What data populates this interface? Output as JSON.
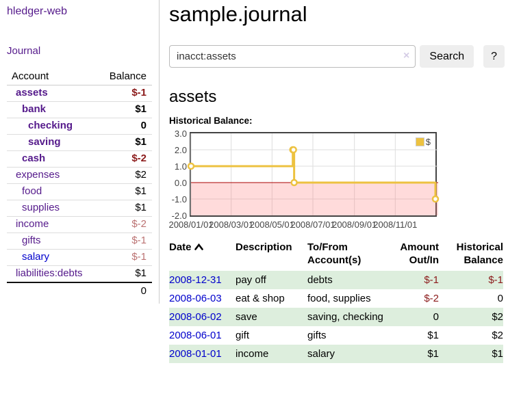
{
  "brand": "hledger-web",
  "sidebar": {
    "journal_link": "Journal",
    "accounts_table": {
      "headers": [
        "Account",
        "Balance"
      ],
      "rows": [
        {
          "name": "assets",
          "depth": 1,
          "bold": true,
          "balance": "$-1",
          "negative": true
        },
        {
          "name": "bank",
          "depth": 2,
          "bold": true,
          "balance": "$1",
          "negative": false
        },
        {
          "name": "checking",
          "depth": 3,
          "bold": true,
          "balance": "0",
          "negative": false
        },
        {
          "name": "saving",
          "depth": 3,
          "bold": true,
          "balance": "$1",
          "negative": false
        },
        {
          "name": "cash",
          "depth": 2,
          "bold": true,
          "balance": "$-2",
          "negative": true
        },
        {
          "name": "expenses",
          "depth": 1,
          "bold": false,
          "balance": "$2",
          "negative": false
        },
        {
          "name": "food",
          "depth": 2,
          "bold": false,
          "balance": "$1",
          "negative": false
        },
        {
          "name": "supplies",
          "depth": 2,
          "bold": false,
          "balance": "$1",
          "negative": false
        },
        {
          "name": "income",
          "depth": 1,
          "bold": false,
          "balance": "$-2",
          "negative": true
        },
        {
          "name": "gifts",
          "depth": 2,
          "bold": false,
          "balance": "$-1",
          "negative": true
        },
        {
          "name": "salary",
          "depth": 2,
          "bold": false,
          "balance": "$-1",
          "negative": true,
          "link_color": "blue"
        },
        {
          "name": "liabilities:debts",
          "depth": 1,
          "bold": false,
          "balance": "$1",
          "negative": false
        }
      ],
      "total": "0"
    }
  },
  "header": {
    "title": "sample.journal"
  },
  "search": {
    "value": "inacct:assets",
    "clear_icon": "×",
    "button_label": "Search",
    "help_label": "?"
  },
  "account_page": {
    "title": "assets",
    "chart_label": "Historical Balance:"
  },
  "chart_data": {
    "type": "line",
    "title": "Historical Balance:",
    "step": true,
    "series": [
      {
        "name": "$",
        "color": "#edc240",
        "points": [
          [
            "2008-01-01",
            1
          ],
          [
            "2008-06-01",
            2
          ],
          [
            "2008-06-02",
            2
          ],
          [
            "2008-06-03",
            0
          ],
          [
            "2008-12-31",
            -1
          ]
        ]
      }
    ],
    "ylim": [
      -2,
      3
    ],
    "yticks": [
      "3.0",
      "2.0",
      "1.0",
      "0.0",
      "-1.0",
      "-2.0"
    ],
    "xticks": [
      "2008/01/01",
      "2008/03/01",
      "2008/05/01",
      "2008/07/01",
      "2008/09/01",
      "2008/11/01"
    ],
    "grid": true,
    "legend_position": "top-right",
    "negative_fill": "rgba(255,110,110,0.25)",
    "zero_line_color": "#aa0000",
    "grid_color": "#dddddd"
  },
  "register_table": {
    "headers": {
      "date": "Date",
      "description": "Description",
      "accounts": "To/From Account(s)",
      "amount": "Amount Out/In",
      "balance": "Historical Balance"
    },
    "rows": [
      {
        "date": "2008-12-31",
        "description": "pay off",
        "accounts": "debts",
        "amount": "$-1",
        "amount_negative": true,
        "balance": "$-1",
        "balance_negative": true
      },
      {
        "date": "2008-06-03",
        "description": "eat & shop",
        "accounts": "food, supplies",
        "amount": "$-2",
        "amount_negative": true,
        "balance": "0",
        "balance_negative": false
      },
      {
        "date": "2008-06-02",
        "description": "save",
        "accounts": "saving, checking",
        "amount": "0",
        "amount_negative": false,
        "balance": "$2",
        "balance_negative": false
      },
      {
        "date": "2008-06-01",
        "description": "gift",
        "accounts": "gifts",
        "amount": "$1",
        "amount_negative": false,
        "balance": "$2",
        "balance_negative": false
      },
      {
        "date": "2008-01-01",
        "description": "income",
        "accounts": "salary",
        "amount": "$1",
        "amount_negative": false,
        "balance": "$1",
        "balance_negative": false
      }
    ]
  },
  "colors": {
    "link_purple": "#551a8b",
    "link_blue": "#0000cc",
    "negative_strong": "#8b1a1a",
    "negative_muted": "#bb7272",
    "row_green": "#ddeedd",
    "series_gold": "#edc240"
  }
}
